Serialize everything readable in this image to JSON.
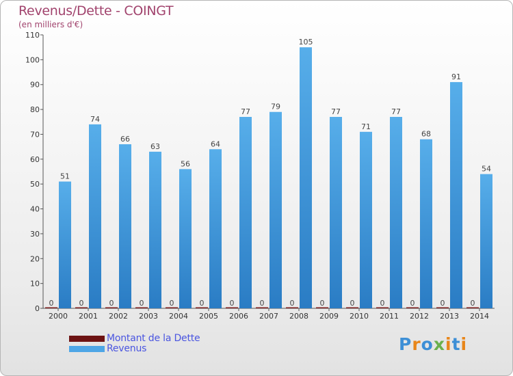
{
  "title": "Revenus/Dette - COINGT",
  "subtitle": "(en milliers d'€)",
  "logo": {
    "text": "Proxiti",
    "colors": [
      "#3d8fd6",
      "#e8861a",
      "#3d8fd6",
      "#6ab04c",
      "#e8861a",
      "#3d8fd6",
      "#e8861a"
    ]
  },
  "colors": {
    "dette": "#7a1a1a",
    "revenus": "#4ea6e6",
    "revenus_dark": "#2b7fc6",
    "title": "#a1436d",
    "legend_text": "#4a55e0"
  },
  "legend": [
    {
      "label": "Montant de la Dette",
      "color": "#6d1313"
    },
    {
      "label": "Revenus",
      "color": "#4ea6e6"
    }
  ],
  "chart_data": {
    "type": "bar",
    "title": "Revenus/Dette - COINGT",
    "subtitle": "(en milliers d'€)",
    "categories": [
      "2000",
      "2001",
      "2002",
      "2003",
      "2004",
      "2005",
      "2006",
      "2007",
      "2008",
      "2009",
      "2010",
      "2011",
      "2012",
      "2013",
      "2014"
    ],
    "series": [
      {
        "name": "Montant de la Dette",
        "values": [
          0,
          0,
          0,
          0,
          0,
          0,
          0,
          0,
          0,
          0,
          0,
          0,
          0,
          0,
          0
        ]
      },
      {
        "name": "Revenus",
        "values": [
          51,
          74,
          66,
          63,
          56,
          64,
          77,
          79,
          105,
          77,
          71,
          77,
          68,
          91,
          54
        ]
      }
    ],
    "ylim": [
      0,
      110
    ],
    "yticks": [
      0,
      10,
      20,
      30,
      40,
      50,
      60,
      70,
      80,
      90,
      100,
      110
    ],
    "grid": false,
    "legend_position": "bottom-left"
  }
}
